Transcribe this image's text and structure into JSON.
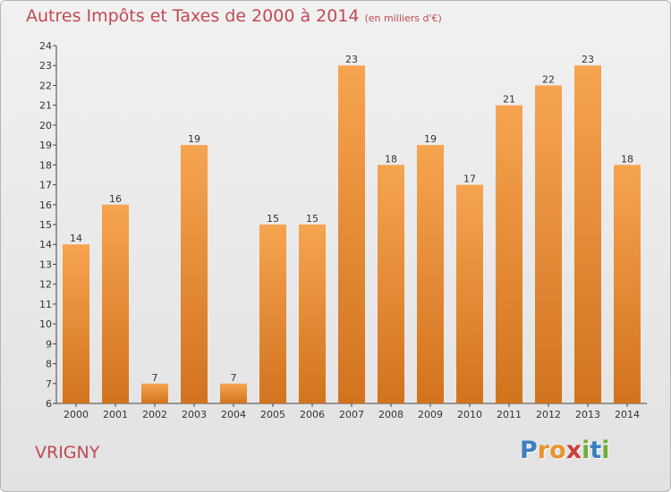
{
  "title": "Autres Impôts et Taxes de 2000 à 2014",
  "subtitle": "(en milliers d'€)",
  "location": "VRIGNY",
  "logo": {
    "letters": [
      "P",
      "r",
      "o",
      "x",
      "i",
      "t",
      "i"
    ],
    "colors": [
      "#3a7fc1",
      "#e8942f",
      "#e8942f",
      "#cf3d3d",
      "#6fae3a",
      "#3a7fc1",
      "#6fae3a"
    ]
  },
  "colors": {
    "bar_light": "#f6a450",
    "bar_dark": "#d2731e",
    "axis": "#444444",
    "text": "#333333"
  },
  "chart_data": {
    "type": "bar",
    "categories": [
      "2000",
      "2001",
      "2002",
      "2003",
      "2004",
      "2005",
      "2006",
      "2007",
      "2008",
      "2009",
      "2010",
      "2011",
      "2012",
      "2013",
      "2014"
    ],
    "values": [
      14,
      16,
      7,
      19,
      7,
      15,
      15,
      23,
      18,
      19,
      17,
      21,
      22,
      23,
      18
    ],
    "ylim": [
      6,
      24
    ],
    "yticks": [
      6,
      7,
      8,
      9,
      10,
      11,
      12,
      13,
      14,
      15,
      16,
      17,
      18,
      19,
      20,
      21,
      22,
      23,
      24
    ],
    "grid": false,
    "data_labels": true
  }
}
